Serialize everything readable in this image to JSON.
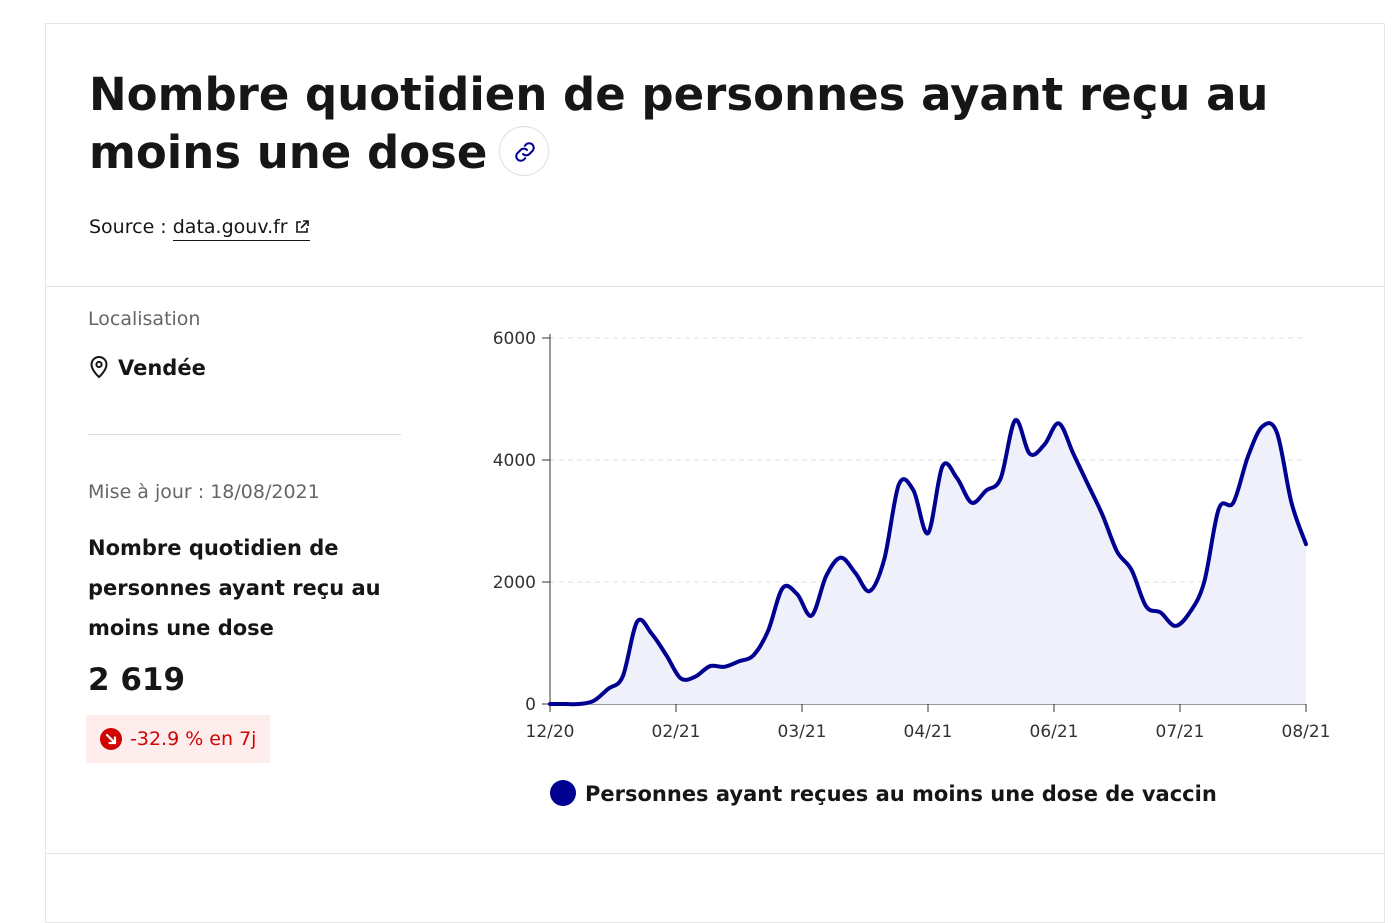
{
  "header": {
    "title": "Nombre quotidien de personnes ayant reçu au moins une dose",
    "source_prefix": "Source :",
    "source_link": "data.gouv.fr"
  },
  "sidebar": {
    "location_label": "Localisation",
    "location_value": "Vendée",
    "update_label": "Mise à jour : 18/08/2021",
    "kpi_name": "Nombre quotidien de personnes ayant reçu au moins une dose",
    "kpi_value": "2 619",
    "kpi_change": "-32.9 % en 7j"
  },
  "colors": {
    "primary": "#000091",
    "negative": "#ce0500",
    "negative_bg": "#fdeeed",
    "area_fill": "#f0f0fb"
  },
  "chart_data": {
    "type": "area",
    "title": "",
    "xlabel": "",
    "ylabel": "",
    "ylim": [
      0,
      6000
    ],
    "yticks": [
      0,
      2000,
      4000,
      6000
    ],
    "x_tick_labels": [
      "12/20",
      "02/21",
      "03/21",
      "04/21",
      "06/21",
      "07/21",
      "08/21"
    ],
    "grid": "horizontal dashed",
    "legend": "bottom",
    "series": [
      {
        "name": "Personnes ayant reçues au moins une dose de vaccin",
        "color": "#000091",
        "values": [
          0,
          0,
          0,
          50,
          250,
          450,
          1350,
          1150,
          800,
          420,
          450,
          620,
          610,
          700,
          800,
          1200,
          1900,
          1800,
          1450,
          2100,
          2400,
          2150,
          1850,
          2380,
          3600,
          3500,
          2800,
          3900,
          3700,
          3300,
          3500,
          3700,
          4650,
          4100,
          4250,
          4600,
          4100,
          3600,
          3100,
          2500,
          2200,
          1600,
          1500,
          1280,
          1500,
          2000,
          3200,
          3300,
          4050,
          4550,
          4450,
          3300,
          2619
        ]
      }
    ]
  }
}
